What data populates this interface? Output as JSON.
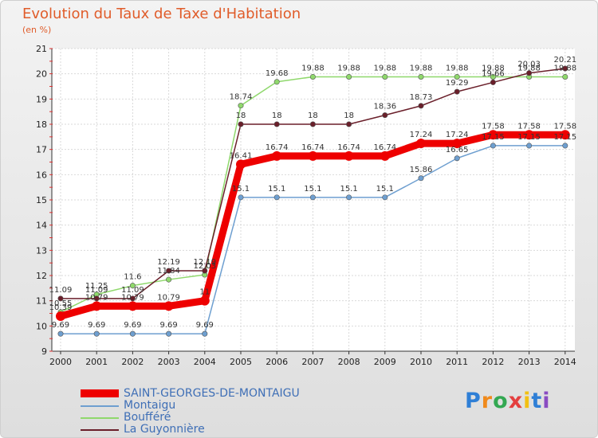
{
  "header": {
    "title": "Evolution du Taux de Taxe d'Habitation",
    "subtitle": "(en %)"
  },
  "logo": {
    "text": "Proxiti"
  },
  "colors": {
    "s0": "#ee0000",
    "s1": "#6e9fd0",
    "s2": "#8fd86c",
    "s3": "#6a1f2a",
    "text": "#3f6fb6"
  },
  "chart_data": {
    "type": "line",
    "title": "Evolution du Taux de Taxe d'Habitation",
    "ylabel": "(en %)",
    "xlabel": "",
    "x": [
      "2000",
      "2001",
      "2002",
      "2003",
      "2004",
      "2005",
      "2006",
      "2007",
      "2008",
      "2009",
      "2010",
      "2011",
      "2012",
      "2013",
      "2014"
    ],
    "ylim": [
      9,
      21
    ],
    "yticks": [
      "9",
      "10",
      "11",
      "12",
      "13",
      "14",
      "15",
      "16",
      "17",
      "18",
      "19",
      "20",
      "21"
    ],
    "grid": true,
    "legend_position": "bottom-left",
    "series": [
      {
        "name": "SAINT-GEORGES-DE-MONTAIGU",
        "color": "#ee0000",
        "values": [
          10.39,
          10.79,
          10.79,
          10.79,
          11.0,
          16.41,
          16.74,
          16.74,
          16.74,
          16.74,
          17.24,
          17.24,
          17.58,
          17.58,
          17.58
        ],
        "labels": [
          "10.39",
          "10.79",
          "10.79",
          "10.79",
          "11",
          "16.41",
          "16.74",
          "16.74",
          "16.74",
          "16.74",
          "17.24",
          "17.24",
          "17.58",
          "17.58",
          "17.58"
        ]
      },
      {
        "name": "Montaigu",
        "color": "#6e9fd0",
        "values": [
          9.69,
          9.69,
          9.69,
          9.69,
          9.69,
          15.1,
          15.1,
          15.1,
          15.1,
          15.1,
          15.86,
          16.65,
          17.15,
          17.15,
          17.15
        ],
        "labels": [
          "9.69",
          "9.69",
          "9.69",
          "9.69",
          "9.69",
          "15.1",
          "15.1",
          "15.1",
          "15.1",
          "15.1",
          "15.86",
          "16.65",
          "17.15",
          "17.15",
          "17.15"
        ]
      },
      {
        "name": "Boufféré",
        "color": "#8fd86c",
        "values": [
          10.55,
          11.25,
          11.6,
          11.84,
          12.03,
          18.74,
          19.68,
          19.88,
          19.88,
          19.88,
          19.88,
          19.88,
          19.88,
          19.88,
          19.88
        ],
        "labels": [
          "10.55",
          "11.25",
          "11.6",
          "11.84",
          "12.03",
          "18.74",
          "19.68",
          "19.88",
          "19.88",
          "19.88",
          "19.88",
          "19.88",
          "19.88",
          "19.88",
          "19.88"
        ]
      },
      {
        "name": "La Guyonnière",
        "color": "#6a1f2a",
        "values": [
          11.09,
          11.09,
          11.09,
          12.19,
          12.19,
          18.0,
          18.0,
          18.0,
          18.0,
          18.36,
          18.73,
          19.29,
          19.66,
          20.03,
          20.21
        ],
        "labels": [
          "11.09",
          "11.09",
          "11.09",
          "12.19",
          "12.19",
          "18",
          "18",
          "18",
          "18",
          "18.36",
          "18.73",
          "19.29",
          "19.66",
          "20.03",
          "20.21"
        ]
      }
    ]
  }
}
